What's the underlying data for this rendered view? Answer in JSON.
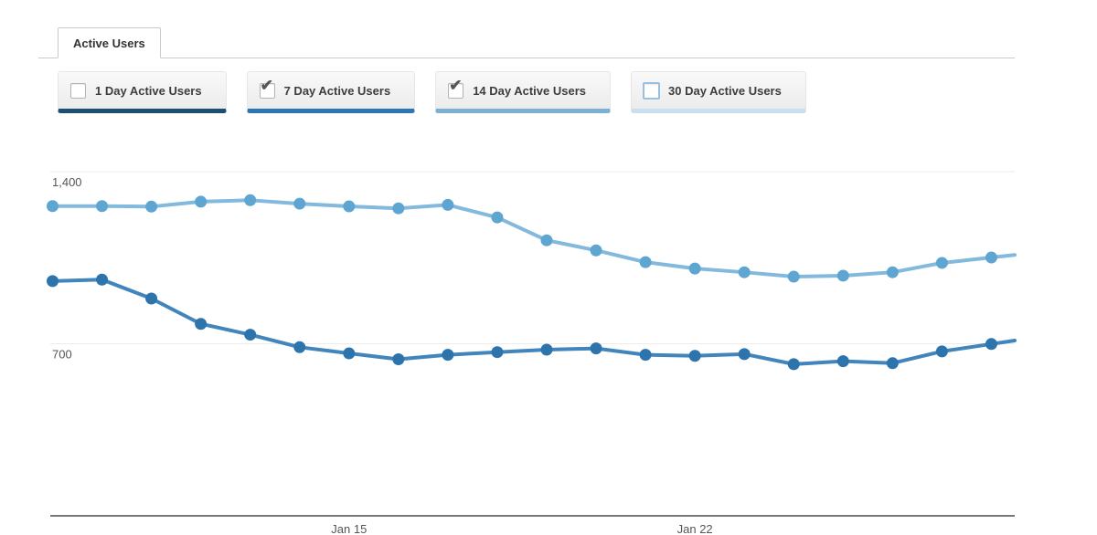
{
  "tab": {
    "label": "Active Users"
  },
  "toggles": [
    {
      "label": "1 Day Active Users",
      "checked": false,
      "underline_color": "#1d4f74",
      "checkbox_border": "#b3b3b3",
      "highlighted": false
    },
    {
      "label": "7 Day Active Users",
      "checked": true,
      "underline_color": "#2e75b6",
      "checkbox_border": "#b3b3b3",
      "highlighted": false
    },
    {
      "label": "14 Day Active Users",
      "checked": true,
      "underline_color": "#7ab0d4",
      "checkbox_border": "#b3b3b3",
      "highlighted": false
    },
    {
      "label": "30 Day Active Users",
      "checked": false,
      "underline_color": "#c9dff0",
      "checkbox_border": "#97c0e2",
      "highlighted": true
    }
  ],
  "chart_data": {
    "type": "line",
    "title": "Active Users",
    "x": [
      "Jan 9",
      "Jan 10",
      "Jan 11",
      "Jan 12",
      "Jan 13",
      "Jan 14",
      "Jan 15",
      "Jan 16",
      "Jan 17",
      "Jan 18",
      "Jan 19",
      "Jan 20",
      "Jan 21",
      "Jan 22",
      "Jan 23",
      "Jan 24",
      "Jan 25",
      "Jan 26",
      "Jan 27",
      "Jan 28"
    ],
    "series": [
      {
        "name": "7 Day Active Users",
        "line_color": "#4285bd",
        "dot_color": "#2d74ad",
        "values": [
          955,
          961,
          884,
          781,
          737,
          686,
          661,
          637,
          655,
          666,
          676,
          681,
          655,
          651,
          658,
          617,
          629,
          621,
          669,
          699
        ]
      },
      {
        "name": "14 Day Active Users",
        "line_color": "#82b9dd",
        "dot_color": "#5ea5d2",
        "values": [
          1260,
          1260,
          1258,
          1278,
          1284,
          1270,
          1259,
          1251,
          1265,
          1214,
          1121,
          1080,
          1032,
          1006,
          991,
          973,
          977,
          991,
          1029,
          1051
        ]
      }
    ],
    "yticks": [
      {
        "label": "700",
        "value": 700
      },
      {
        "label": "1,400",
        "value": 1400
      }
    ],
    "xticks": [
      {
        "label": "Jan 15",
        "index": 6
      },
      {
        "label": "Jan 22",
        "index": 13
      }
    ],
    "ylim": [
      0,
      1430
    ],
    "grid": true,
    "legend_position": "none",
    "grid_color": "#ececec",
    "axis_color": "#777777",
    "tick_label_color": "#555555"
  }
}
